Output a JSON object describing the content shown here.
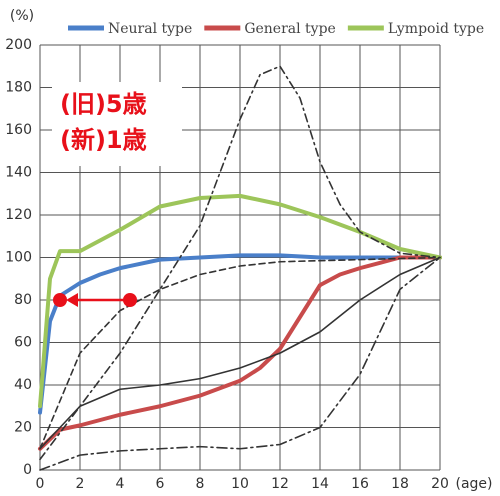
{
  "chart_data": {
    "type": "line",
    "y_label": "(%)",
    "x_label": "(age)",
    "xlim": [
      0,
      20
    ],
    "ylim": [
      0,
      200
    ],
    "xticks": [
      0,
      2,
      4,
      6,
      8,
      10,
      12,
      14,
      16,
      18,
      20
    ],
    "yticks": [
      0,
      20,
      40,
      60,
      80,
      100,
      120,
      140,
      160,
      180,
      200
    ],
    "grid": true,
    "series": [
      {
        "name": "Neural type",
        "color": "#4a7fc9",
        "x": [
          0,
          0.5,
          1,
          2,
          3,
          4,
          6,
          8,
          10,
          12,
          14,
          16,
          18,
          20
        ],
        "values": [
          27,
          70,
          82,
          88,
          92,
          95,
          99,
          100,
          101,
          101,
          100,
          100,
          100,
          100
        ]
      },
      {
        "name": "General type",
        "color": "#c84b4b",
        "x": [
          0,
          1,
          2,
          4,
          6,
          8,
          10,
          11,
          12,
          13,
          14,
          15,
          16,
          18,
          20
        ],
        "values": [
          10,
          19,
          21,
          26,
          30,
          35,
          42,
          48,
          57,
          72,
          87,
          92,
          95,
          100,
          100
        ]
      },
      {
        "name": "Lympoid type",
        "color": "#9dc55a",
        "x": [
          0,
          0.5,
          1,
          2,
          3,
          4,
          6,
          8,
          10,
          12,
          14,
          16,
          18,
          20
        ],
        "values": [
          30,
          90,
          103,
          103,
          108,
          113,
          124,
          128,
          129,
          125,
          119,
          112,
          104,
          100
        ]
      },
      {
        "color": "#333333",
        "dash": "8 4 2 4",
        "x": [
          0,
          2,
          4,
          6,
          8,
          10,
          11,
          12,
          13,
          14,
          15,
          16,
          18,
          20
        ],
        "values": [
          5,
          30,
          55,
          85,
          115,
          165,
          186,
          190,
          175,
          145,
          125,
          112,
          102,
          100
        ]
      },
      {
        "color": "#333333",
        "dash": "6 4",
        "x": [
          0,
          2,
          4,
          6,
          8,
          10,
          12,
          16,
          20
        ],
        "values": [
          10,
          55,
          75,
          85,
          92,
          96,
          98,
          99,
          100
        ]
      },
      {
        "color": "#333333",
        "x": [
          0,
          2,
          4,
          6,
          8,
          10,
          12,
          14,
          16,
          18,
          20
        ],
        "values": [
          10,
          30,
          38,
          40,
          43,
          48,
          55,
          65,
          80,
          92,
          100
        ]
      },
      {
        "color": "#333333",
        "dash": "10 4 2 4",
        "x": [
          0,
          2,
          4,
          6,
          8,
          10,
          12,
          14,
          16,
          18,
          20
        ],
        "values": [
          0,
          7,
          9,
          10,
          11,
          10,
          12,
          20,
          45,
          85,
          100
        ]
      }
    ],
    "annotations": [
      "(旧)5歳",
      "(新)1歳"
    ],
    "arrow": {
      "color": "#e8101a",
      "x": [
        4.5,
        1
      ],
      "y": 80
    }
  }
}
